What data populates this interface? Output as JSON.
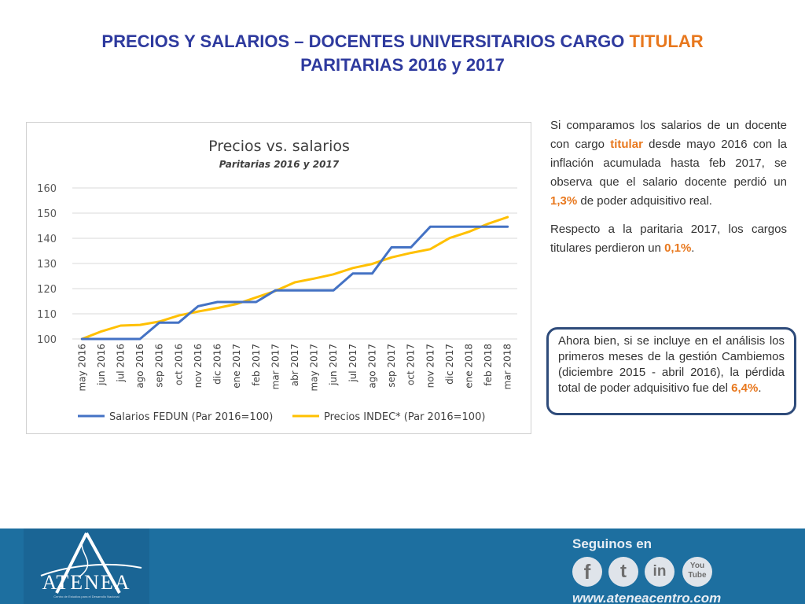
{
  "header": {
    "title_part1": "PRECIOS Y SALARIOS – DOCENTES UNIVERSITARIOS CARGO ",
    "title_highlight": "TITULAR",
    "title_line2": "PARITARIAS 2016 y 2017"
  },
  "chart_data": {
    "type": "line",
    "title": "Precios vs. salarios",
    "subtitle": "Paritarias 2016 y 2017",
    "ylim": [
      100,
      160
    ],
    "yticks": [
      "100",
      "110",
      "120",
      "130",
      "140",
      "150",
      "160"
    ],
    "grid": true,
    "legend_position": "bottom",
    "categories": [
      "may 2016",
      "jun 2016",
      "jul 2016",
      "ago 2016",
      "sep 2016",
      "oct 2016",
      "nov 2016",
      "dic 2016",
      "ene 2017",
      "feb 2017",
      "mar 2017",
      "abr 2017",
      "may 2017",
      "jun 2017",
      "jul 2017",
      "ago 2017",
      "sep 2017",
      "oct 2017",
      "nov 2017",
      "dic 2017",
      "ene 2018",
      "feb 2018",
      "mar 2018"
    ],
    "series": [
      {
        "name": "Salarios FEDUN (Par 2016=100)",
        "color": "#4472c4",
        "values": [
          100,
          100,
          100,
          100,
          106.5,
          106.5,
          113,
          114.7,
          114.7,
          114.7,
          119.3,
          119.3,
          119.3,
          119.3,
          126,
          126,
          136.4,
          136.4,
          144.6,
          144.6,
          144.6,
          144.6,
          144.6
        ]
      },
      {
        "name": "Precios INDEC* (Par 2016=100)",
        "color": "#ffc000",
        "values": [
          100,
          103,
          105.3,
          105.6,
          106.9,
          109.3,
          110.9,
          112.3,
          113.9,
          116.5,
          119.1,
          122.5,
          124,
          125.7,
          128.2,
          129.8,
          132.4,
          134.2,
          135.7,
          140.1,
          142.6,
          145.8,
          148.4
        ]
      }
    ]
  },
  "right_text": {
    "p1_a": "Si comparamos los salarios de un docente con cargo ",
    "p1_titular": "titular",
    "p1_b": " desde mayo 2016 con la inflación acumulada hasta feb 2017, se observa que el salario docente perdió un ",
    "p1_pct": "1,3%",
    "p1_c": " de poder adquisitivo real.",
    "p2_a": "Respecto a la paritaria 2017, los cargos titulares perdieron un ",
    "p2_pct": "0,1%",
    "p2_c": "."
  },
  "callout": {
    "text_a": "Ahora bien, si se incluye en el análisis los primeros meses de la gestión Cambiemos (diciembre 2015 - abril 2016), la pérdida total de poder adquisitivo fue del ",
    "pct": "6,4%",
    "text_c": "."
  },
  "footer": {
    "logo_name": "ATENEA",
    "logo_tagline": "Centro de Estudios para el Desarrollo Nacional",
    "follow_label": "Seguinos en",
    "social": [
      {
        "name": "facebook",
        "glyph": "f"
      },
      {
        "name": "twitter",
        "glyph": "t"
      },
      {
        "name": "linkedin",
        "glyph": "in"
      },
      {
        "name": "youtube",
        "glyph": "You Tube"
      }
    ],
    "website": "www.ateneacentro.com"
  }
}
